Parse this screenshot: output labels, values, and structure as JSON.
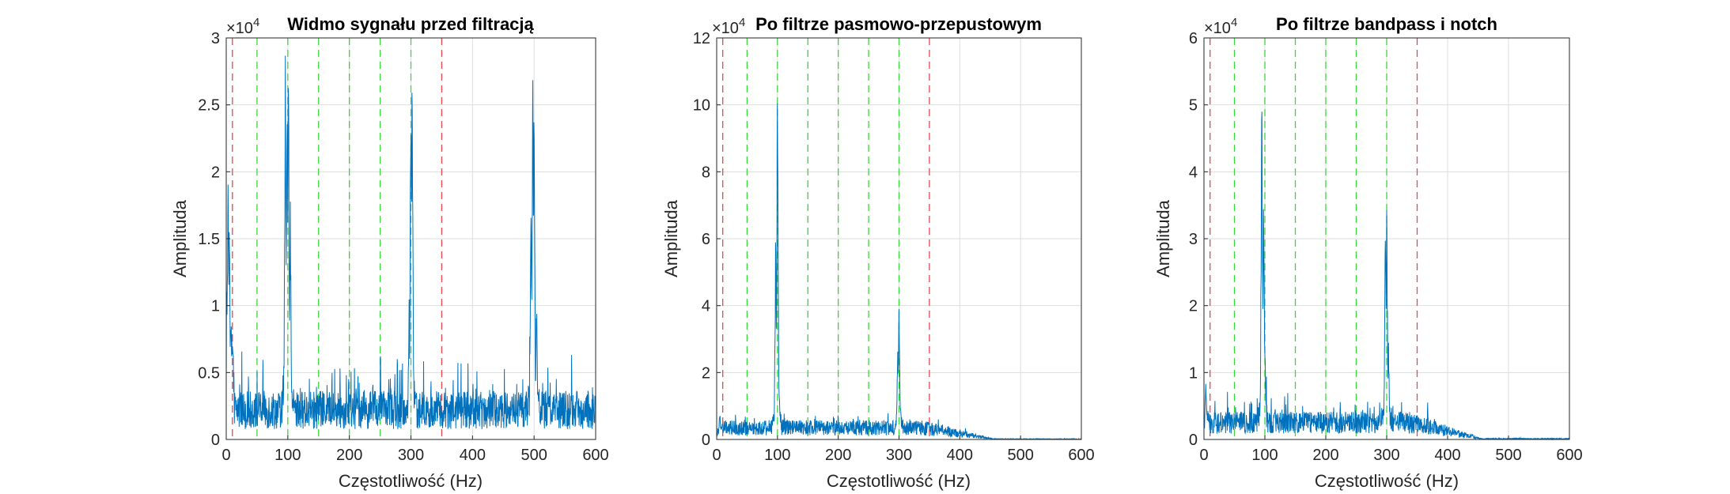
{
  "chart_data": [
    {
      "type": "line",
      "title": "Widmo sygnału przed filtracją",
      "xlabel": "Częstotliwość (Hz)",
      "ylabel": "Amplituda",
      "xlim": [
        0,
        600
      ],
      "ylim": [
        0,
        30000
      ],
      "exponent_label": "×10",
      "exponent_power": "4",
      "xticks": [
        "0",
        "100",
        "200",
        "300",
        "400",
        "500",
        "600"
      ],
      "yticks": [
        "0",
        "0.5",
        "1",
        "1.5",
        "2",
        "2.5",
        "3"
      ],
      "grid": true,
      "line_color": "#0072BD",
      "red_lines": [
        10,
        350
      ],
      "green_lines": [
        50,
        100,
        150,
        200,
        250,
        300
      ],
      "red_line_color": "#E8474C",
      "green_line_color": "#3BD63B",
      "baseline": 2200,
      "noise_range": [
        0,
        5500
      ],
      "peaks": [
        {
          "x": 3,
          "y": 21000
        },
        {
          "x": 5,
          "y": 17500
        },
        {
          "x": 7,
          "y": 9500
        },
        {
          "x": 96,
          "y": 30000
        },
        {
          "x": 99,
          "y": 30000
        },
        {
          "x": 101,
          "y": 30000
        },
        {
          "x": 104,
          "y": 20000
        },
        {
          "x": 297,
          "y": 9000
        },
        {
          "x": 300,
          "y": 30000
        },
        {
          "x": 302,
          "y": 30000
        },
        {
          "x": 495,
          "y": 18000
        },
        {
          "x": 498,
          "y": 30000
        },
        {
          "x": 500,
          "y": 30000
        },
        {
          "x": 504,
          "y": 11500
        }
      ]
    },
    {
      "type": "line",
      "title": "Po filtrze pasmowo-przepustowym",
      "xlabel": "Częstotliwość (Hz)",
      "ylabel": "Amplituda",
      "xlim": [
        0,
        600
      ],
      "ylim": [
        0,
        120000
      ],
      "exponent_label": "×10",
      "exponent_power": "4",
      "xticks": [
        "0",
        "100",
        "200",
        "300",
        "400",
        "500",
        "600"
      ],
      "yticks": [
        "0",
        "2",
        "4",
        "6",
        "8",
        "10",
        "12"
      ],
      "grid": true,
      "line_color": "#0072BD",
      "red_lines": [
        10,
        350
      ],
      "green_lines": [
        50,
        100,
        150,
        200,
        250,
        300
      ],
      "red_line_color": "#E8474C",
      "green_line_color": "#3BD63B",
      "baseline": 3500,
      "noise_range": [
        0,
        6000
      ],
      "peaks": [
        {
          "x": 5,
          "y": 9000
        },
        {
          "x": 97,
          "y": 59000
        },
        {
          "x": 100,
          "y": 118000
        },
        {
          "x": 103,
          "y": 15000
        },
        {
          "x": 298,
          "y": 28000
        },
        {
          "x": 300,
          "y": 45000
        },
        {
          "x": 302,
          "y": 12000
        }
      ]
    },
    {
      "type": "line",
      "title": "Po filtrze bandpass i notch",
      "xlabel": "Częstotliwość (Hz)",
      "ylabel": "Amplituda",
      "xlim": [
        0,
        600
      ],
      "ylim": [
        0,
        60000
      ],
      "exponent_label": "×10",
      "exponent_power": "4",
      "xticks": [
        "0",
        "100",
        "200",
        "300",
        "400",
        "500",
        "600"
      ],
      "yticks": [
        "0",
        "1",
        "2",
        "3",
        "4",
        "5",
        "6"
      ],
      "grid": true,
      "line_color": "#0072BD",
      "red_lines": [
        10,
        350
      ],
      "green_lines": [
        50,
        100,
        150,
        200,
        250,
        300
      ],
      "red_line_color": "#E8474C",
      "green_line_color": "#3BD63B",
      "baseline": 2500,
      "noise_range": [
        0,
        6000
      ],
      "peaks": [
        {
          "x": 3,
          "y": 10000
        },
        {
          "x": 95,
          "y": 55000
        },
        {
          "x": 98,
          "y": 40000
        },
        {
          "x": 100,
          "y": 18000
        },
        {
          "x": 298,
          "y": 36000
        },
        {
          "x": 300,
          "y": 38000
        },
        {
          "x": 303,
          "y": 15000
        }
      ]
    }
  ]
}
